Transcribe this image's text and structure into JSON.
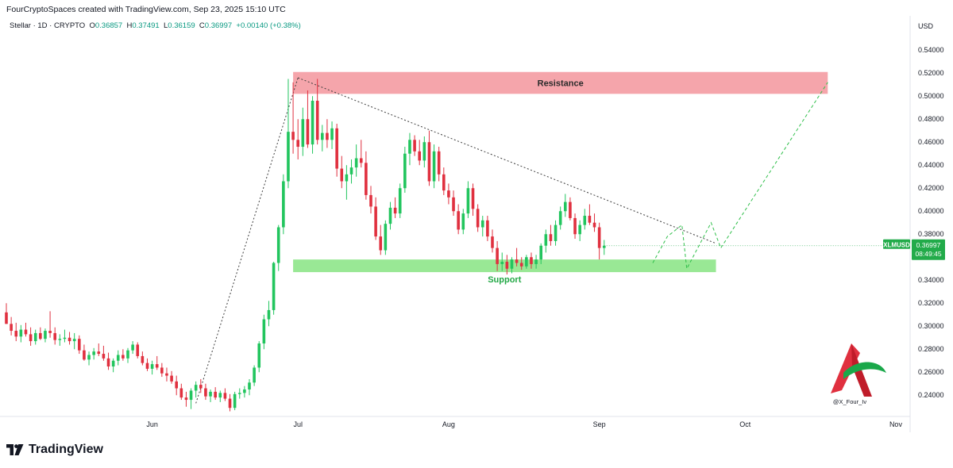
{
  "header": {
    "created_by": "FourCryptoSpaces created with TradingView.com, Sep 23, 2025 15:10 UTC",
    "symbol_line": "Stellar · 1D · CRYPTO",
    "o_label": "O",
    "o_value": "0.36857",
    "h_label": "H",
    "h_value": "0.37491",
    "l_label": "L",
    "l_value": "0.36159",
    "c_label": "C",
    "c_value": "0.36997",
    "change": "+0.00140 (+0.38%)",
    "currency": "USD"
  },
  "footer": {
    "brand": "TradingView"
  },
  "colors": {
    "up": "#089981",
    "down": "#f23645",
    "up_chart": "#22c55e",
    "down_chart": "#e0303f",
    "resistance": "#f4a0a6",
    "support": "#8ee68a",
    "price_tag": "#22ab4a"
  },
  "chart_data": {
    "type": "candlestick",
    "series_name": "XLMUSD",
    "ylim": [
      0.225,
      0.556
    ],
    "y_ticks": [
      0.24,
      0.26,
      0.28,
      0.3,
      0.32,
      0.34,
      0.36,
      0.38,
      0.4,
      0.42,
      0.44,
      0.46,
      0.48,
      0.5,
      0.52,
      0.54
    ],
    "x_labels": [
      {
        "label": "Jun",
        "day": 30
      },
      {
        "label": "Jul",
        "day": 60
      },
      {
        "label": "Aug",
        "day": 91
      },
      {
        "label": "Sep",
        "day": 122
      },
      {
        "label": "Oct",
        "day": 152
      },
      {
        "label": "Nov",
        "day": 183
      }
    ],
    "start_date": "2025-05-01",
    "last_price": "0.36997",
    "countdown": "08:49:45",
    "zones": [
      {
        "name": "Resistance",
        "from": 0.502,
        "to": 0.521,
        "start_day": 59,
        "end_day": 169
      },
      {
        "name": "Support",
        "from": 0.347,
        "to": 0.358,
        "start_day": 59,
        "end_day": 146
      }
    ],
    "trendlines": [
      {
        "style": "dotted",
        "points": [
          [
            39,
            0.233
          ],
          [
            60,
            0.516
          ]
        ]
      },
      {
        "style": "dotted",
        "points": [
          [
            60,
            0.516
          ],
          [
            146,
            0.372
          ]
        ]
      }
    ],
    "projection": {
      "style": "dashed",
      "points": [
        [
          133,
          0.355
        ],
        [
          136,
          0.378
        ],
        [
          139,
          0.388
        ],
        [
          140,
          0.35
        ],
        [
          145,
          0.39
        ],
        [
          147,
          0.368
        ],
        [
          169,
          0.512
        ]
      ]
    },
    "watermark": "@X_Four_Iv",
    "candles": [
      [
        0.312,
        0.32,
        0.302,
        0.302
      ],
      [
        0.302,
        0.308,
        0.292,
        0.296
      ],
      [
        0.296,
        0.303,
        0.287,
        0.291
      ],
      [
        0.291,
        0.301,
        0.286,
        0.297
      ],
      [
        0.297,
        0.303,
        0.291,
        0.293
      ],
      [
        0.293,
        0.299,
        0.283,
        0.287
      ],
      [
        0.287,
        0.297,
        0.284,
        0.294
      ],
      [
        0.294,
        0.299,
        0.288,
        0.289
      ],
      [
        0.289,
        0.298,
        0.286,
        0.296
      ],
      [
        0.296,
        0.313,
        0.29,
        0.294
      ],
      [
        0.294,
        0.299,
        0.284,
        0.288
      ],
      [
        0.288,
        0.293,
        0.283,
        0.289
      ],
      [
        0.289,
        0.297,
        0.286,
        0.29
      ],
      [
        0.29,
        0.295,
        0.284,
        0.287
      ],
      [
        0.287,
        0.294,
        0.28,
        0.289
      ],
      [
        0.289,
        0.292,
        0.276,
        0.279
      ],
      [
        0.279,
        0.284,
        0.27,
        0.271
      ],
      [
        0.271,
        0.278,
        0.266,
        0.275
      ],
      [
        0.275,
        0.281,
        0.271,
        0.278
      ],
      [
        0.278,
        0.285,
        0.274,
        0.276
      ],
      [
        0.276,
        0.283,
        0.27,
        0.272
      ],
      [
        0.272,
        0.277,
        0.262,
        0.265
      ],
      [
        0.265,
        0.272,
        0.26,
        0.27
      ],
      [
        0.27,
        0.279,
        0.266,
        0.275
      ],
      [
        0.275,
        0.28,
        0.27,
        0.272
      ],
      [
        0.272,
        0.281,
        0.268,
        0.279
      ],
      [
        0.279,
        0.287,
        0.276,
        0.284
      ],
      [
        0.284,
        0.286,
        0.272,
        0.274
      ],
      [
        0.274,
        0.278,
        0.266,
        0.268
      ],
      [
        0.268,
        0.272,
        0.261,
        0.263
      ],
      [
        0.263,
        0.27,
        0.258,
        0.267
      ],
      [
        0.267,
        0.274,
        0.262,
        0.264
      ],
      [
        0.264,
        0.268,
        0.256,
        0.259
      ],
      [
        0.259,
        0.264,
        0.252,
        0.257
      ],
      [
        0.257,
        0.261,
        0.25,
        0.252
      ],
      [
        0.252,
        0.257,
        0.24,
        0.246
      ],
      [
        0.246,
        0.25,
        0.236,
        0.238
      ],
      [
        0.238,
        0.243,
        0.23,
        0.236
      ],
      [
        0.236,
        0.246,
        0.228,
        0.244
      ],
      [
        0.244,
        0.252,
        0.238,
        0.249
      ],
      [
        0.249,
        0.254,
        0.242,
        0.246
      ],
      [
        0.246,
        0.25,
        0.236,
        0.239
      ],
      [
        0.239,
        0.245,
        0.234,
        0.243
      ],
      [
        0.243,
        0.247,
        0.236,
        0.238
      ],
      [
        0.238,
        0.244,
        0.234,
        0.242
      ],
      [
        0.242,
        0.246,
        0.235,
        0.237
      ],
      [
        0.237,
        0.241,
        0.226,
        0.229
      ],
      [
        0.229,
        0.243,
        0.227,
        0.241
      ],
      [
        0.241,
        0.246,
        0.237,
        0.242
      ],
      [
        0.242,
        0.248,
        0.238,
        0.245
      ],
      [
        0.245,
        0.254,
        0.24,
        0.251
      ],
      [
        0.251,
        0.266,
        0.248,
        0.264
      ],
      [
        0.264,
        0.287,
        0.26,
        0.285
      ],
      [
        0.285,
        0.31,
        0.28,
        0.306
      ],
      [
        0.306,
        0.322,
        0.3,
        0.314
      ],
      [
        0.314,
        0.356,
        0.31,
        0.355
      ],
      [
        0.355,
        0.388,
        0.348,
        0.386
      ],
      [
        0.386,
        0.432,
        0.38,
        0.426
      ],
      [
        0.426,
        0.515,
        0.42,
        0.469
      ],
      [
        0.469,
        0.512,
        0.45,
        0.462
      ],
      [
        0.462,
        0.48,
        0.445,
        0.456
      ],
      [
        0.456,
        0.49,
        0.448,
        0.48
      ],
      [
        0.48,
        0.505,
        0.455,
        0.458
      ],
      [
        0.458,
        0.5,
        0.45,
        0.496
      ],
      [
        0.496,
        0.515,
        0.458,
        0.462
      ],
      [
        0.462,
        0.475,
        0.452,
        0.468
      ],
      [
        0.468,
        0.48,
        0.455,
        0.462
      ],
      [
        0.462,
        0.478,
        0.454,
        0.472
      ],
      [
        0.472,
        0.476,
        0.43,
        0.437
      ],
      [
        0.437,
        0.448,
        0.42,
        0.426
      ],
      [
        0.426,
        0.44,
        0.41,
        0.432
      ],
      [
        0.432,
        0.445,
        0.424,
        0.438
      ],
      [
        0.438,
        0.458,
        0.43,
        0.446
      ],
      [
        0.446,
        0.462,
        0.438,
        0.442
      ],
      [
        0.442,
        0.452,
        0.41,
        0.414
      ],
      [
        0.414,
        0.422,
        0.398,
        0.404
      ],
      [
        0.404,
        0.412,
        0.375,
        0.378
      ],
      [
        0.378,
        0.388,
        0.362,
        0.366
      ],
      [
        0.366,
        0.392,
        0.362,
        0.389
      ],
      [
        0.389,
        0.408,
        0.384,
        0.403
      ],
      [
        0.403,
        0.412,
        0.394,
        0.398
      ],
      [
        0.398,
        0.424,
        0.394,
        0.42
      ],
      [
        0.42,
        0.456,
        0.416,
        0.45
      ],
      [
        0.45,
        0.468,
        0.44,
        0.462
      ],
      [
        0.462,
        0.466,
        0.448,
        0.452
      ],
      [
        0.452,
        0.462,
        0.44,
        0.444
      ],
      [
        0.444,
        0.465,
        0.438,
        0.46
      ],
      [
        0.46,
        0.47,
        0.422,
        0.426
      ],
      [
        0.426,
        0.458,
        0.42,
        0.452
      ],
      [
        0.452,
        0.456,
        0.426,
        0.432
      ],
      [
        0.432,
        0.438,
        0.414,
        0.418
      ],
      [
        0.418,
        0.424,
        0.406,
        0.412
      ],
      [
        0.412,
        0.418,
        0.396,
        0.4
      ],
      [
        0.4,
        0.406,
        0.38,
        0.384
      ],
      [
        0.384,
        0.402,
        0.38,
        0.398
      ],
      [
        0.398,
        0.426,
        0.394,
        0.42
      ],
      [
        0.42,
        0.424,
        0.396,
        0.402
      ],
      [
        0.402,
        0.406,
        0.382,
        0.386
      ],
      [
        0.386,
        0.396,
        0.378,
        0.392
      ],
      [
        0.392,
        0.396,
        0.374,
        0.378
      ],
      [
        0.378,
        0.384,
        0.364,
        0.368
      ],
      [
        0.368,
        0.374,
        0.348,
        0.354
      ],
      [
        0.354,
        0.364,
        0.348,
        0.356
      ],
      [
        0.356,
        0.362,
        0.345,
        0.35
      ],
      [
        0.35,
        0.36,
        0.346,
        0.358
      ],
      [
        0.358,
        0.368,
        0.352,
        0.355
      ],
      [
        0.355,
        0.36,
        0.349,
        0.352
      ],
      [
        0.352,
        0.362,
        0.35,
        0.36
      ],
      [
        0.36,
        0.364,
        0.35,
        0.354
      ],
      [
        0.354,
        0.362,
        0.35,
        0.358
      ],
      [
        0.358,
        0.372,
        0.354,
        0.37
      ],
      [
        0.37,
        0.384,
        0.364,
        0.38
      ],
      [
        0.38,
        0.388,
        0.37,
        0.374
      ],
      [
        0.374,
        0.392,
        0.37,
        0.388
      ],
      [
        0.388,
        0.404,
        0.384,
        0.4
      ],
      [
        0.4,
        0.415,
        0.395,
        0.408
      ],
      [
        0.408,
        0.412,
        0.392,
        0.394
      ],
      [
        0.394,
        0.398,
        0.376,
        0.38
      ],
      [
        0.38,
        0.392,
        0.374,
        0.388
      ],
      [
        0.388,
        0.402,
        0.384,
        0.396
      ],
      [
        0.396,
        0.406,
        0.388,
        0.39
      ],
      [
        0.39,
        0.398,
        0.382,
        0.386
      ],
      [
        0.386,
        0.39,
        0.358,
        0.368
      ],
      [
        0.368,
        0.375,
        0.362,
        0.37
      ]
    ]
  }
}
